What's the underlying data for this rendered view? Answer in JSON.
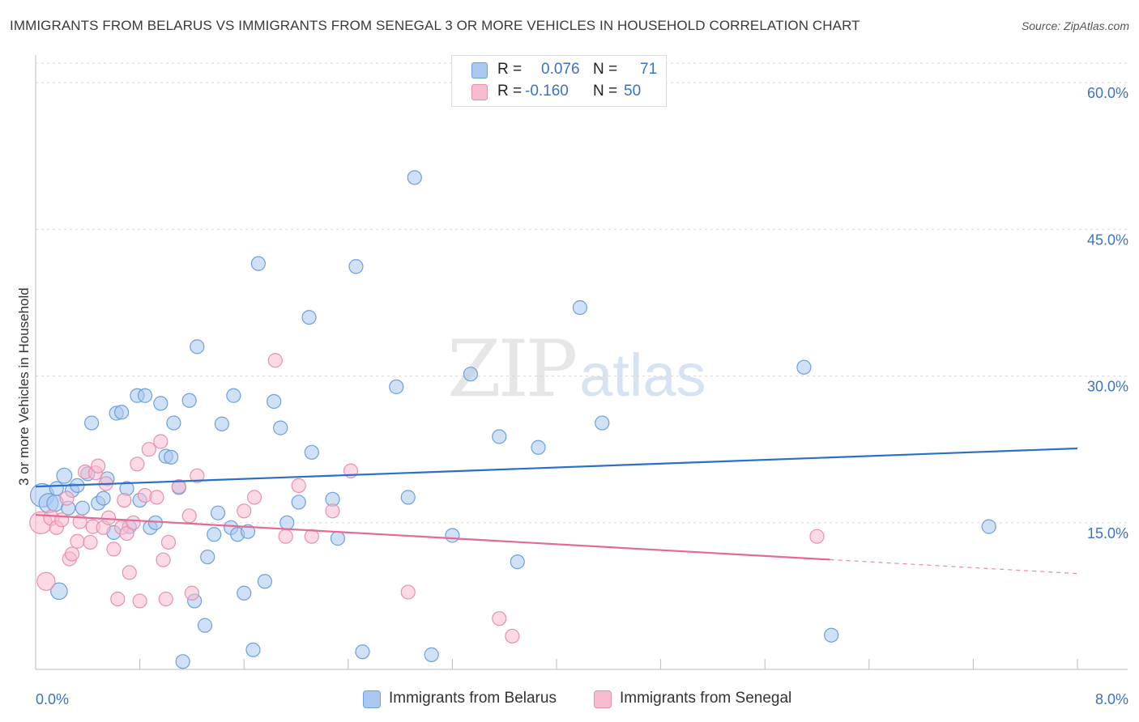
{
  "header": {
    "title": "IMMIGRANTS FROM BELARUS VS IMMIGRANTS FROM SENEGAL 3 OR MORE VEHICLES IN HOUSEHOLD CORRELATION CHART",
    "source": "Source: ZipAtlas.com"
  },
  "legend": {
    "belarus": {
      "r_label": "R =",
      "r_value": "0.076",
      "n_label": "N =",
      "n_value": "71"
    },
    "senegal": {
      "r_label": "R =",
      "r_value": "-0.160",
      "n_label": "N =",
      "n_value": "50"
    }
  },
  "bottom_legend": {
    "belarus": "Immigrants from Belarus",
    "senegal": "Immigrants from Senegal"
  },
  "watermark": {
    "zip": "ZIP",
    "atlas": "atlas"
  },
  "colors": {
    "belarus_fill": "#aac8ef",
    "belarus_stroke": "#6d9fdc",
    "belarus_line": "#2a6fc9",
    "senegal_fill": "#f7bcd0",
    "senegal_stroke": "#e88fae",
    "senegal_line": "#e46a95",
    "tick_text": "#3a73c4",
    "grid": "#d8d8d8"
  },
  "chart_data": {
    "type": "scatter",
    "title": "IMMIGRANTS FROM BELARUS VS IMMIGRANTS FROM SENEGAL 3 OR MORE VEHICLES IN HOUSEHOLD CORRELATION CHART",
    "xlabel": "",
    "ylabel": "3 or more Vehicles in Household",
    "xlim": [
      0,
      8
    ],
    "ylim": [
      0,
      62
    ],
    "x_tick_labels": [
      {
        "value": 0,
        "label": "0.0%"
      },
      {
        "value": 8,
        "label": "8.0%"
      }
    ],
    "y_ticks": [
      {
        "value": 15,
        "label": "15.0%"
      },
      {
        "value": 30,
        "label": "30.0%"
      },
      {
        "value": 45,
        "label": "45.0%"
      },
      {
        "value": 60,
        "label": "60.0%"
      }
    ],
    "x_minor_ticks": [
      0.8,
      1.6,
      2.4,
      3.2,
      4.0,
      4.8,
      5.6,
      6.4,
      7.2,
      8.0
    ],
    "series": [
      {
        "name": "Immigrants from Belarus",
        "color": "#aac8ef",
        "trend": {
          "x": [
            0,
            8
          ],
          "y": [
            18.7,
            22.6
          ],
          "dashed_from": null
        },
        "points": [
          [
            0.05,
            17.8,
            1.7
          ],
          [
            0.1,
            17.0,
            1.4
          ],
          [
            0.15,
            17.0,
            1.2
          ],
          [
            0.18,
            8.0,
            1.2
          ],
          [
            0.22,
            19.8,
            1.1
          ],
          [
            0.25,
            16.5,
            1.0
          ],
          [
            0.28,
            18.3,
            1.0
          ],
          [
            0.32,
            18.8,
            1.0
          ],
          [
            0.36,
            16.5,
            1.0
          ],
          [
            0.4,
            20.0,
            1.0
          ],
          [
            0.43,
            25.2,
            1.0
          ],
          [
            0.48,
            17.0,
            1.0
          ],
          [
            0.52,
            17.5,
            1.0
          ],
          [
            0.55,
            19.5,
            1.0
          ],
          [
            0.6,
            14.0,
            1.0
          ],
          [
            0.62,
            26.2,
            1.0
          ],
          [
            0.66,
            26.3,
            1.0
          ],
          [
            0.7,
            18.5,
            1.0
          ],
          [
            0.72,
            14.6,
            1.0
          ],
          [
            0.78,
            28.0,
            1.0
          ],
          [
            0.8,
            17.3,
            1.0
          ],
          [
            0.84,
            28.0,
            1.0
          ],
          [
            0.88,
            14.5,
            1.0
          ],
          [
            0.92,
            15.0,
            1.0
          ],
          [
            0.96,
            27.2,
            1.0
          ],
          [
            1.0,
            21.8,
            1.0
          ],
          [
            1.04,
            21.7,
            1.0
          ],
          [
            1.06,
            25.2,
            1.0
          ],
          [
            1.1,
            18.6,
            1.0
          ],
          [
            1.13,
            0.8,
            1.0
          ],
          [
            1.18,
            27.5,
            1.0
          ],
          [
            1.22,
            7.0,
            1.0
          ],
          [
            1.24,
            33.0,
            1.0
          ],
          [
            1.3,
            4.5,
            1.0
          ],
          [
            1.32,
            11.5,
            1.0
          ],
          [
            1.37,
            13.8,
            1.0
          ],
          [
            1.4,
            16.0,
            1.0
          ],
          [
            1.43,
            25.1,
            1.0
          ],
          [
            1.5,
            14.5,
            1.0
          ],
          [
            1.52,
            28.0,
            1.0
          ],
          [
            1.55,
            13.8,
            1.0
          ],
          [
            1.6,
            7.8,
            1.0
          ],
          [
            1.63,
            14.1,
            1.0
          ],
          [
            1.67,
            2.0,
            1.0
          ],
          [
            1.71,
            41.5,
            1.0
          ],
          [
            1.76,
            9.0,
            1.0
          ],
          [
            1.83,
            27.4,
            1.0
          ],
          [
            1.88,
            24.7,
            1.0
          ],
          [
            1.93,
            15.0,
            1.0
          ],
          [
            2.02,
            17.1,
            1.0
          ],
          [
            2.1,
            36.0,
            1.0
          ],
          [
            2.12,
            22.2,
            1.0
          ],
          [
            2.28,
            17.4,
            1.0
          ],
          [
            2.32,
            13.4,
            1.0
          ],
          [
            2.46,
            41.2,
            1.0
          ],
          [
            2.51,
            1.8,
            1.0
          ],
          [
            2.77,
            28.9,
            1.0
          ],
          [
            2.86,
            17.6,
            1.0
          ],
          [
            2.91,
            50.3,
            1.0
          ],
          [
            3.04,
            1.5,
            1.0
          ],
          [
            3.2,
            13.7,
            1.0
          ],
          [
            3.34,
            30.2,
            1.0
          ],
          [
            3.56,
            23.8,
            1.0
          ],
          [
            3.7,
            11.0,
            1.0
          ],
          [
            3.86,
            22.7,
            1.0
          ],
          [
            4.18,
            37.0,
            1.0
          ],
          [
            4.35,
            25.2,
            1.0
          ],
          [
            5.9,
            30.9,
            1.0
          ],
          [
            6.11,
            3.5,
            1.0
          ],
          [
            7.32,
            14.6,
            1.0
          ],
          [
            0.16,
            18.5,
            1.0
          ]
        ]
      },
      {
        "name": "Immigrants from Senegal",
        "color": "#f7bcd0",
        "trend": {
          "x": [
            0,
            8
          ],
          "y": [
            15.8,
            9.8
          ],
          "dashed_from": 6.1
        },
        "points": [
          [
            0.04,
            15.0,
            1.6
          ],
          [
            0.08,
            9.0,
            1.3
          ],
          [
            0.12,
            15.5,
            1.1
          ],
          [
            0.16,
            14.5,
            1.0
          ],
          [
            0.2,
            15.3,
            1.0
          ],
          [
            0.24,
            17.5,
            1.0
          ],
          [
            0.26,
            11.3,
            1.0
          ],
          [
            0.28,
            11.8,
            1.0
          ],
          [
            0.32,
            13.1,
            1.0
          ],
          [
            0.34,
            15.1,
            1.0
          ],
          [
            0.38,
            20.2,
            1.0
          ],
          [
            0.42,
            13.0,
            1.0
          ],
          [
            0.44,
            14.6,
            1.0
          ],
          [
            0.46,
            20.1,
            1.0
          ],
          [
            0.48,
            20.8,
            1.0
          ],
          [
            0.52,
            14.5,
            1.0
          ],
          [
            0.54,
            19.0,
            1.0
          ],
          [
            0.56,
            15.5,
            1.0
          ],
          [
            0.6,
            12.3,
            1.0
          ],
          [
            0.63,
            7.2,
            1.0
          ],
          [
            0.66,
            14.5,
            1.0
          ],
          [
            0.68,
            17.3,
            1.0
          ],
          [
            0.7,
            13.9,
            1.0
          ],
          [
            0.72,
            9.9,
            1.0
          ],
          [
            0.75,
            15.0,
            1.0
          ],
          [
            0.78,
            21.0,
            1.0
          ],
          [
            0.8,
            7.0,
            1.0
          ],
          [
            0.84,
            17.8,
            1.0
          ],
          [
            0.87,
            22.5,
            1.0
          ],
          [
            0.93,
            17.6,
            1.0
          ],
          [
            0.96,
            23.3,
            1.0
          ],
          [
            0.98,
            11.2,
            1.0
          ],
          [
            1.0,
            7.2,
            1.0
          ],
          [
            1.02,
            13.0,
            1.0
          ],
          [
            1.1,
            18.7,
            1.0
          ],
          [
            1.18,
            15.7,
            1.0
          ],
          [
            1.2,
            7.8,
            1.0
          ],
          [
            1.24,
            19.8,
            1.0
          ],
          [
            1.6,
            16.2,
            1.0
          ],
          [
            1.68,
            17.6,
            1.0
          ],
          [
            1.84,
            31.6,
            1.0
          ],
          [
            1.92,
            13.6,
            1.0
          ],
          [
            2.02,
            18.8,
            1.0
          ],
          [
            2.12,
            13.6,
            1.0
          ],
          [
            2.28,
            16.2,
            1.0
          ],
          [
            2.42,
            20.3,
            1.0
          ],
          [
            2.86,
            7.9,
            1.0
          ],
          [
            3.56,
            5.2,
            1.0
          ],
          [
            3.66,
            3.4,
            1.0
          ],
          [
            6.0,
            13.6,
            1.0
          ]
        ]
      }
    ]
  }
}
